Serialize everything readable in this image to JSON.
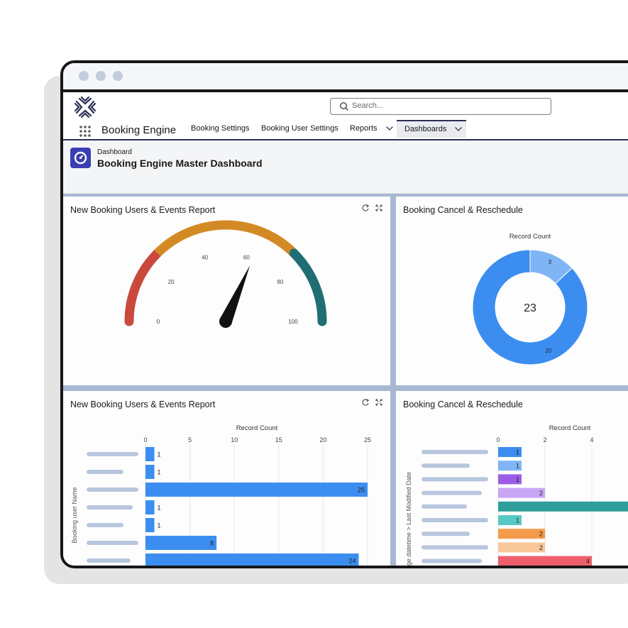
{
  "window": {
    "dots": 3
  },
  "header": {
    "search_placeholder": "Search...",
    "app_name": "Booking Engine",
    "tabs": [
      {
        "label": "Booking Settings",
        "dropdown": false,
        "active": false
      },
      {
        "label": "Booking User Settings",
        "dropdown": false,
        "active": false
      },
      {
        "label": "Reports",
        "dropdown": true,
        "active": false
      },
      {
        "label": "Dashboards",
        "dropdown": true,
        "active": true
      }
    ]
  },
  "page": {
    "kicker": "Dashboard",
    "title": "Booking Engine Master Dashboard"
  },
  "colors": {
    "accent": "#3a3fb2",
    "navy": "#2a2e56",
    "bar_blue": "#3b8ef0"
  },
  "cards": {
    "gauge_title": "New Booking Users & Events Report",
    "donut_title": "Booking Cancel & Reschedule",
    "bar1_title": "New Booking Users & Events Report",
    "bar2_title": "Booking Cancel & Reschedule"
  },
  "chart_data": [
    {
      "type": "gauge",
      "title": "New Booking Users & Events Report",
      "min": 0,
      "max": 100,
      "ticks": [
        "0",
        "20",
        "40",
        "60",
        "80",
        "100"
      ],
      "value": 63,
      "bands": [
        {
          "from": 0,
          "to": 25,
          "color": "#c94a3d"
        },
        {
          "from": 25,
          "to": 75,
          "color": "#d48a24"
        },
        {
          "from": 75,
          "to": 100,
          "color": "#1f6e73"
        }
      ]
    },
    {
      "type": "pie",
      "title": "Booking Cancel & Reschedule",
      "subtitle": "Record Count",
      "total_label": "23",
      "slices": [
        {
          "label": "20",
          "value": 20,
          "color": "#3b8ef0"
        },
        {
          "label": "3",
          "value": 3,
          "color": "#7fb5f4"
        }
      ]
    },
    {
      "type": "bar",
      "title": "New Booking Users & Events Report",
      "xlabel": "Record Count",
      "ylabel": "Booking user Name",
      "xticks": [
        "0",
        "5",
        "10",
        "15",
        "20",
        "25"
      ],
      "xlim": [
        0,
        25
      ],
      "values": [
        1,
        1,
        25,
        1,
        1,
        8,
        24
      ],
      "value_labels": [
        "1",
        "1",
        "25",
        "1",
        "1",
        "8",
        "24"
      ],
      "color": "#3b8ef0"
    },
    {
      "type": "bar",
      "title": "Booking Cancel & Reschedule",
      "xlabel": "Record Count",
      "ylabel": "ge datetime  >  Last Modified Date",
      "xticks": [
        "0",
        "2",
        "4"
      ],
      "xlim": [
        0,
        5
      ],
      "values": [
        1,
        1,
        1,
        2,
        9,
        1,
        2,
        2,
        4
      ],
      "value_labels": [
        "1",
        "1",
        "1",
        "2",
        "",
        "1",
        "2",
        "2",
        "4"
      ],
      "colors": [
        "#3b8ef0",
        "#7fb5f4",
        "#9d5ce6",
        "#c9a6f5",
        "#2f9e9a",
        "#57c9c4",
        "#f49b4b",
        "#f8c799",
        "#ee5e6b"
      ]
    }
  ]
}
